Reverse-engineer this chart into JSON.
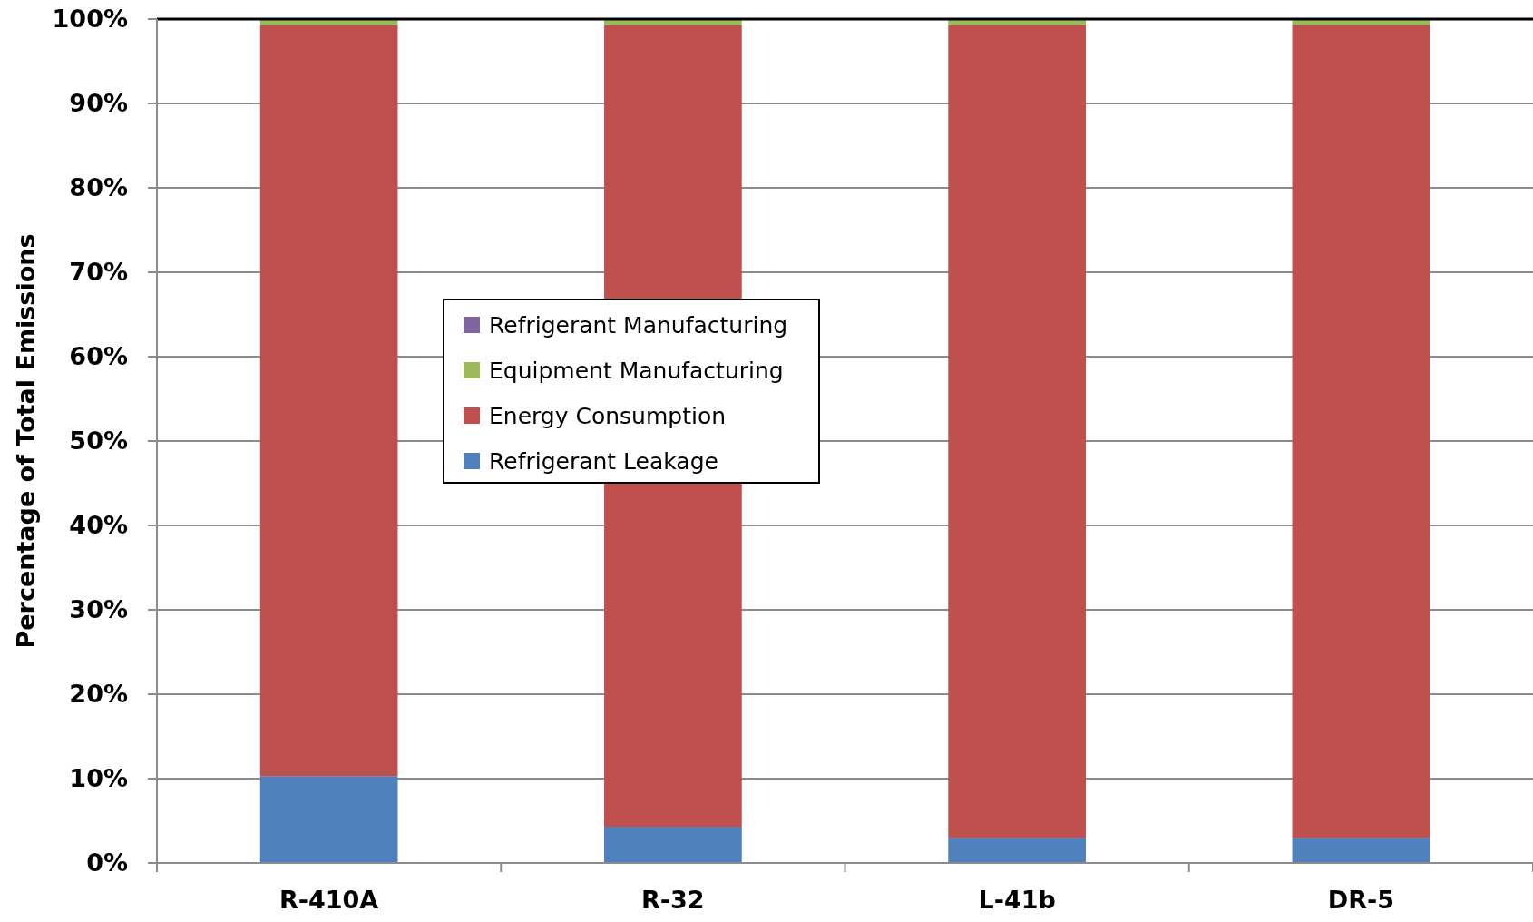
{
  "chart_data": {
    "type": "bar",
    "stacked": true,
    "ylabel": "Percentage of Total Emissions",
    "categories": [
      "R-410A",
      "R-32",
      "L-41b",
      "DR-5"
    ],
    "series": [
      {
        "name": "Refrigerant Leakage",
        "color": "#4f81bd",
        "values": [
          10.3,
          4.3,
          3.0,
          3.0
        ]
      },
      {
        "name": "Energy Consumption",
        "color": "#c0504d",
        "values": [
          89.0,
          95.0,
          96.3,
          96.3
        ]
      },
      {
        "name": "Equipment Manufacturing",
        "color": "#9bbb59",
        "values": [
          0.6,
          0.6,
          0.6,
          0.6
        ]
      },
      {
        "name": "Refrigerant Manufacturing",
        "color": "#8064a2",
        "values": [
          0.1,
          0.1,
          0.1,
          0.1
        ]
      }
    ],
    "ylim": [
      0,
      100
    ],
    "yticks": [
      {
        "value": 0,
        "label": "0%"
      },
      {
        "value": 10,
        "label": "10%"
      },
      {
        "value": 20,
        "label": "20%"
      },
      {
        "value": 30,
        "label": "30%"
      },
      {
        "value": 40,
        "label": "40%"
      },
      {
        "value": 50,
        "label": "50%"
      },
      {
        "value": 60,
        "label": "60%"
      },
      {
        "value": 70,
        "label": "70%"
      },
      {
        "value": 80,
        "label": "80%"
      },
      {
        "value": 90,
        "label": "90%"
      },
      {
        "value": 100,
        "label": "100%"
      }
    ],
    "grid": "y",
    "legend": "left"
  }
}
